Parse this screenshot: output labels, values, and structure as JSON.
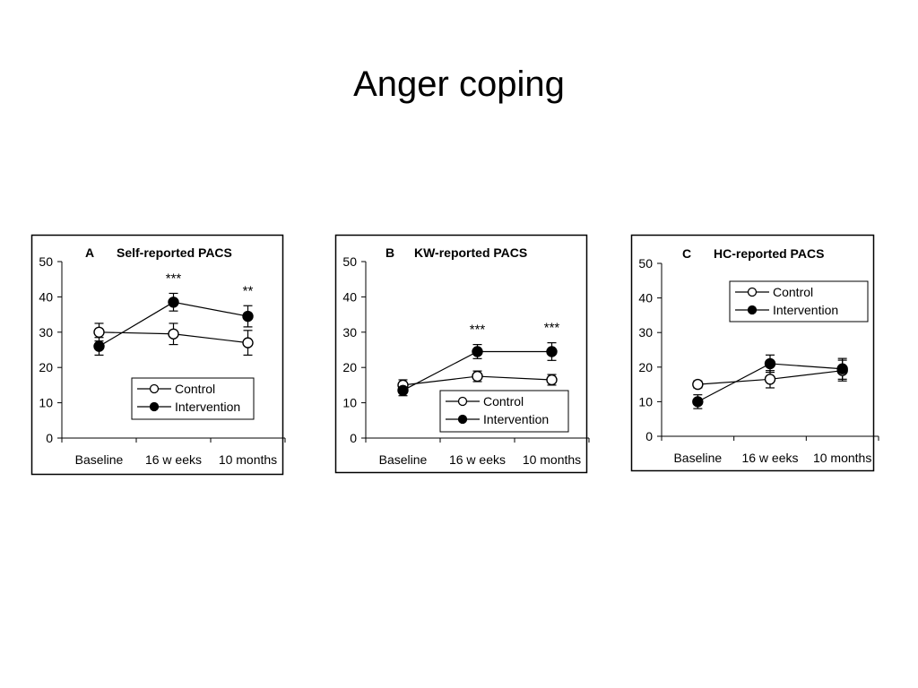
{
  "page": {
    "title": "Anger coping"
  },
  "colors": {
    "control_fill": "#ffffff",
    "intervention_fill": "#000000",
    "stroke": "#000000"
  },
  "chart_data": [
    {
      "type": "line",
      "letter": "A",
      "title": "Self-reported PACS",
      "categories": [
        "Baseline",
        "16 w eeks",
        "10 months"
      ],
      "ylim": [
        0,
        50
      ],
      "yticks": [
        0,
        10,
        20,
        30,
        40,
        50
      ],
      "legend_position": "bottom-right",
      "series": [
        {
          "name": "Control",
          "values": [
            30,
            29.5,
            27
          ],
          "errors": [
            2.5,
            3,
            3.5
          ],
          "marker": "open-circle"
        },
        {
          "name": "Intervention",
          "values": [
            26,
            38.5,
            34.5
          ],
          "errors": [
            2.5,
            2.5,
            3
          ],
          "marker": "filled-circle"
        }
      ],
      "annotations": [
        {
          "category": "16 w eeks",
          "text": "***"
        },
        {
          "category": "10 months",
          "text": "**"
        }
      ]
    },
    {
      "type": "line",
      "letter": "B",
      "title": "KW-reported PACS",
      "categories": [
        "Baseline",
        "16 w eeks",
        "10 months"
      ],
      "ylim": [
        0,
        50
      ],
      "yticks": [
        0,
        10,
        20,
        30,
        40,
        50
      ],
      "legend_position": "bottom-right",
      "series": [
        {
          "name": "Control",
          "values": [
            15,
            17.5,
            16.5
          ],
          "errors": [
            1.5,
            1.5,
            1.5
          ],
          "marker": "open-circle"
        },
        {
          "name": "Intervention",
          "values": [
            13.5,
            24.5,
            24.5
          ],
          "errors": [
            1.5,
            2,
            2.5
          ],
          "marker": "filled-circle"
        }
      ],
      "annotations": [
        {
          "category": "16 w eeks",
          "text": "***"
        },
        {
          "category": "10 months",
          "text": "***"
        }
      ]
    },
    {
      "type": "line",
      "letter": "C",
      "title": "HC-reported PACS",
      "categories": [
        "Baseline",
        "16 w eeks",
        "10 months"
      ],
      "ylim": [
        0,
        50
      ],
      "yticks": [
        0,
        10,
        20,
        30,
        40,
        50
      ],
      "legend_position": "top-right",
      "series": [
        {
          "name": "Control",
          "values": [
            15,
            16.5,
            19
          ],
          "errors": [
            1,
            2.5,
            3
          ],
          "marker": "open-circle"
        },
        {
          "name": "Intervention",
          "values": [
            10,
            21,
            19.5
          ],
          "errors": [
            2,
            2.5,
            3
          ],
          "marker": "filled-circle"
        }
      ],
      "annotations": []
    }
  ]
}
